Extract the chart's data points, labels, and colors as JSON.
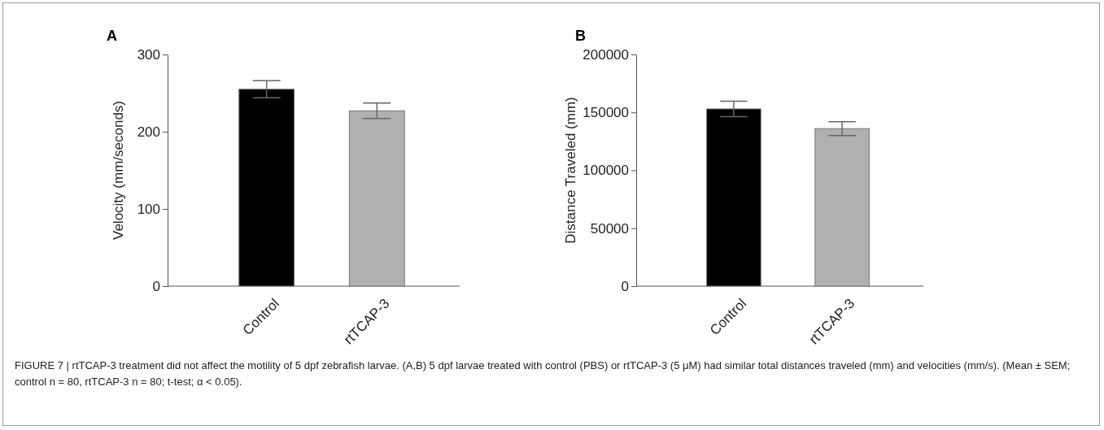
{
  "chart_data": [
    {
      "type": "bar",
      "title": "A",
      "ylabel": "Velocity (mm/seconds)",
      "categories": [
        "Control",
        "rtTCAP-3"
      ],
      "values": [
        255,
        227
      ],
      "errors": [
        11,
        10
      ],
      "colors": [
        "#000000",
        "#b0b0b0"
      ],
      "ylim": [
        0,
        300
      ],
      "yticks": [
        0,
        100,
        200,
        300
      ],
      "grid": false,
      "annotations": [
        "FIGURE 7 | rtTCAP-3 treatment did not affect the motility of 5 dpf zebrafish larvae. (A,B) 5 dpf larvae treated with control (PBS) or rtTCAP-3 (5 μM) had similar total distances traveled (mm) and velocities (mm/s). (Mean ± SEM; control n = 80, rtTCAP-3 n = 80; t-test; α < 0.05)."
      ]
    },
    {
      "type": "bar",
      "title": "B",
      "ylabel": "Distance Traveled (mm)",
      "categories": [
        "Control",
        "rtTCAP-3"
      ],
      "values": [
        153000,
        136000
      ],
      "errors": [
        6600,
        6000
      ],
      "colors": [
        "#000000",
        "#b0b0b0"
      ],
      "ylim": [
        0,
        200000
      ],
      "yticks": [
        0,
        50000,
        100000,
        150000,
        200000
      ],
      "grid": false
    }
  ]
}
